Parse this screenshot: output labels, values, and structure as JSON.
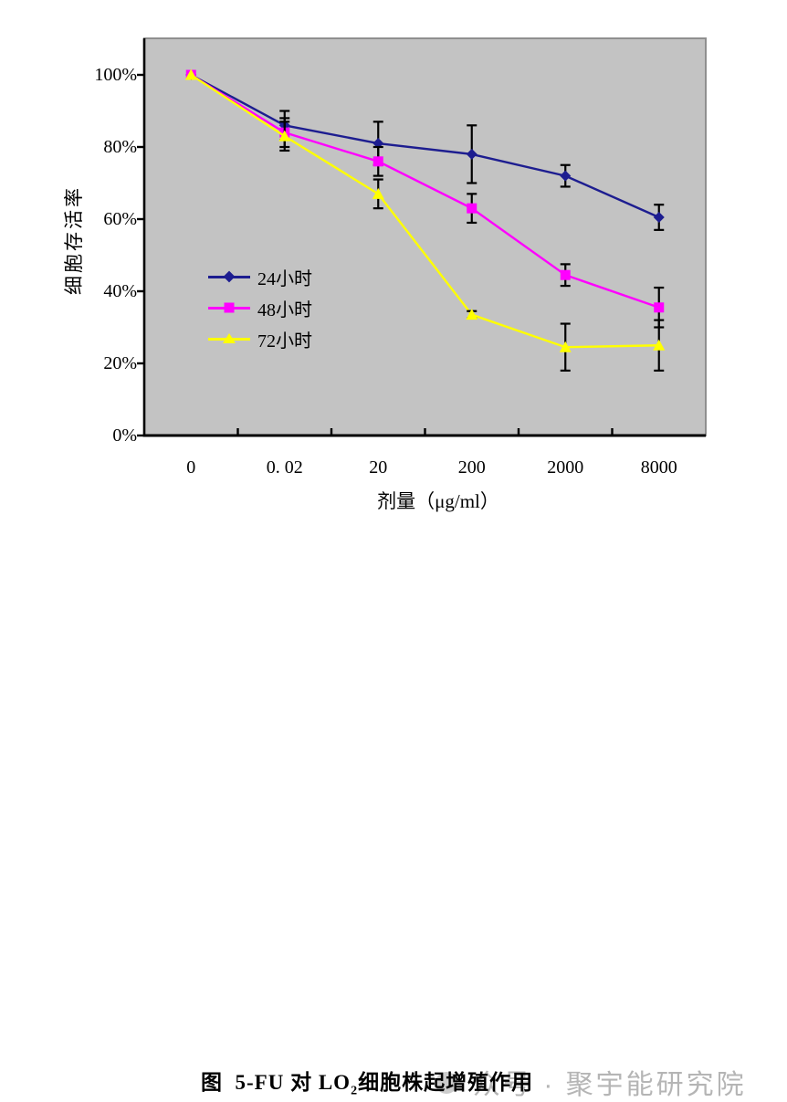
{
  "figure_caption": {
    "prefix": "图  5-FU 对 LO",
    "subscript": "2",
    "suffix": "细胞株起增殖作用"
  },
  "watermark": "众号 · 聚宇能研究院",
  "chart_data": {
    "type": "line",
    "title": "图 5-FU 对 LO2细胞株起增殖作用",
    "xlabel": "剂量（μg/ml）",
    "ylabel": "细胞存活率",
    "x_categories": [
      "0",
      "0. 02",
      "20",
      "200",
      "2000",
      "8000"
    ],
    "y_ticks": [
      "0%",
      "20%",
      "40%",
      "60%",
      "80%",
      "100%"
    ],
    "ylim": [
      0,
      100
    ],
    "grid": false,
    "legend_position": "inside-left-middle",
    "plot_bg": "#c3c3c3",
    "plot_border": "#8f8f8f",
    "axis_color": "#000000",
    "error_bar_color": "#000000",
    "series": [
      {
        "name": "24小时",
        "marker": "diamond",
        "color": "#1d1d90",
        "values": [
          100,
          86,
          81,
          78,
          72,
          60.5
        ],
        "errors": [
          0,
          4,
          6,
          8,
          3,
          3.5
        ]
      },
      {
        "name": "48小时",
        "marker": "square",
        "color": "#ff00ff",
        "values": [
          100,
          84,
          76,
          63,
          44.5,
          35.5
        ],
        "errors": [
          0,
          4,
          4,
          4,
          3,
          5.5
        ]
      },
      {
        "name": "72小时",
        "marker": "triangle",
        "color": "#ffff00",
        "values": [
          100,
          83,
          67,
          33.5,
          24.5,
          25
        ],
        "errors": [
          0,
          4,
          4,
          1,
          6.5,
          7
        ]
      }
    ]
  }
}
